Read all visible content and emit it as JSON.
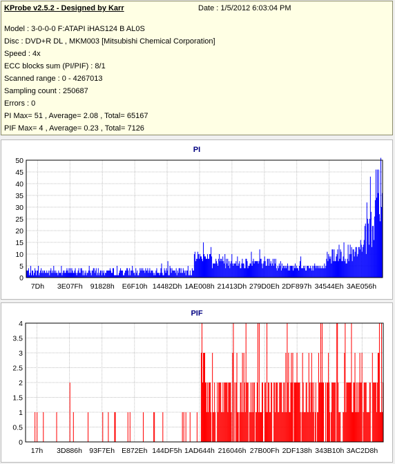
{
  "header": {
    "app_title": "KProbe v2.5.2 - Designed by Karr",
    "date_line": "Date : 1/5/2012 6:03:04 PM",
    "lines": [
      "Model : 3-0-0-0 F:ATAPI  iHAS124  B     AL0S",
      "Disc : DVD+R DL , MKM003 [Mitsubishi Chemical Corporation]",
      "Speed : 4x",
      "ECC blocks sum (PI/PIF) : 8/1",
      "Scanned range : 0 - 4267013",
      "Sampling count : 250687",
      "Errors : 0",
      "PI Max= 51 , Average= 2.08 , Total= 65167",
      "PIF Max= 4 , Average= 0.23 , Total= 7126"
    ]
  },
  "colors": {
    "pi": "#0000ff",
    "pif": "#ff0000",
    "grid": "#c0c0c0",
    "title": "#000080"
  },
  "chart_data": [
    {
      "type": "bar",
      "title": "PI",
      "xlabel": "",
      "ylabel": "",
      "ylim": [
        0,
        50
      ],
      "yticks": [
        0,
        5,
        10,
        15,
        20,
        25,
        30,
        35,
        40,
        45,
        50
      ],
      "xticks": [
        "7Dh",
        "3E07Fh",
        "91828h",
        "E6F10h",
        "14482Dh",
        "1AE008h",
        "21413Dh",
        "279D0Eh",
        "2DF897h",
        "34544Eh",
        "3AE056h"
      ],
      "grid": true,
      "profile": [
        {
          "from": 0.0,
          "to": 0.47,
          "low": 1,
          "high": 4,
          "peak": 7
        },
        {
          "from": 0.47,
          "to": 0.52,
          "low": 7,
          "high": 11,
          "peak": 15
        },
        {
          "from": 0.52,
          "to": 0.7,
          "low": 4,
          "high": 9,
          "peak": 13
        },
        {
          "from": 0.7,
          "to": 0.84,
          "low": 3,
          "high": 6,
          "peak": 10
        },
        {
          "from": 0.84,
          "to": 0.93,
          "low": 6,
          "high": 14,
          "peak": 22
        },
        {
          "from": 0.93,
          "to": 1.0,
          "low": 12,
          "high": 30,
          "peak": 51
        }
      ],
      "series": [
        {
          "values": []
        }
      ]
    },
    {
      "type": "bar",
      "title": "PIF",
      "xlabel": "",
      "ylabel": "",
      "ylim": [
        0,
        4
      ],
      "yticks": [
        0,
        0.5,
        1,
        1.5,
        2,
        2.5,
        3,
        3.5,
        4
      ],
      "ytick_labels": [
        "0",
        "0.5",
        "1",
        "1.5",
        "2",
        "2.5",
        "3",
        "3.5",
        "4"
      ],
      "xticks": [
        "17h",
        "3D886h",
        "93F7Eh",
        "E872Eh",
        "144DF5h",
        "1AD644h",
        "216046h",
        "27B00Fh",
        "2DF138h",
        "343B10h",
        "3AC2D8h"
      ],
      "grid": true,
      "series": [
        {
          "values": []
        }
      ]
    }
  ]
}
